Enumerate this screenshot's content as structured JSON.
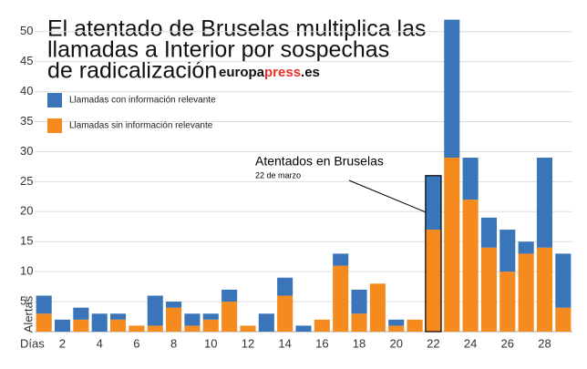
{
  "chart_data": {
    "type": "stacked-bar",
    "title": [
      "El atentado de Bruselas multiplica las",
      "llamadas a Interior por sospechas",
      "de radicalización"
    ],
    "logo": [
      "europa",
      "press",
      ".es"
    ],
    "x_label": "Días",
    "y_label": "Alertas",
    "categories": [
      null,
      "2",
      null,
      "4",
      null,
      "6",
      null,
      "8",
      null,
      "10",
      null,
      "12",
      null,
      "14",
      null,
      "16",
      null,
      "18",
      null,
      "20",
      null,
      "22",
      null,
      "24",
      null,
      "26",
      null,
      "28",
      null
    ],
    "series": [
      {
        "name": "Llamadas sin información relevante",
        "color": "#f58a1f",
        "values": [
          3,
          0,
          2,
          0,
          2,
          1,
          1,
          4,
          1,
          2,
          5,
          1,
          0,
          6,
          0,
          2,
          11,
          3,
          8,
          1,
          2,
          17,
          29,
          22,
          14,
          10,
          13,
          14,
          4
        ]
      },
      {
        "name": "Llamadas con información relevante",
        "color": "#3a74b9",
        "values": [
          3,
          2,
          2,
          3,
          1,
          0,
          5,
          1,
          2,
          1,
          2,
          0,
          3,
          3,
          1,
          0,
          2,
          4,
          0,
          1,
          0,
          9,
          23,
          7,
          5,
          7,
          2,
          15,
          9
        ]
      }
    ],
    "ylim": [
      0,
      53
    ],
    "yticks": [
      5,
      10,
      15,
      20,
      25,
      30,
      35,
      40,
      45,
      50
    ],
    "grid": true,
    "annotation": {
      "title": "Atentados en Bruselas",
      "subtitle": "22 de marzo",
      "category_index": 21
    }
  }
}
